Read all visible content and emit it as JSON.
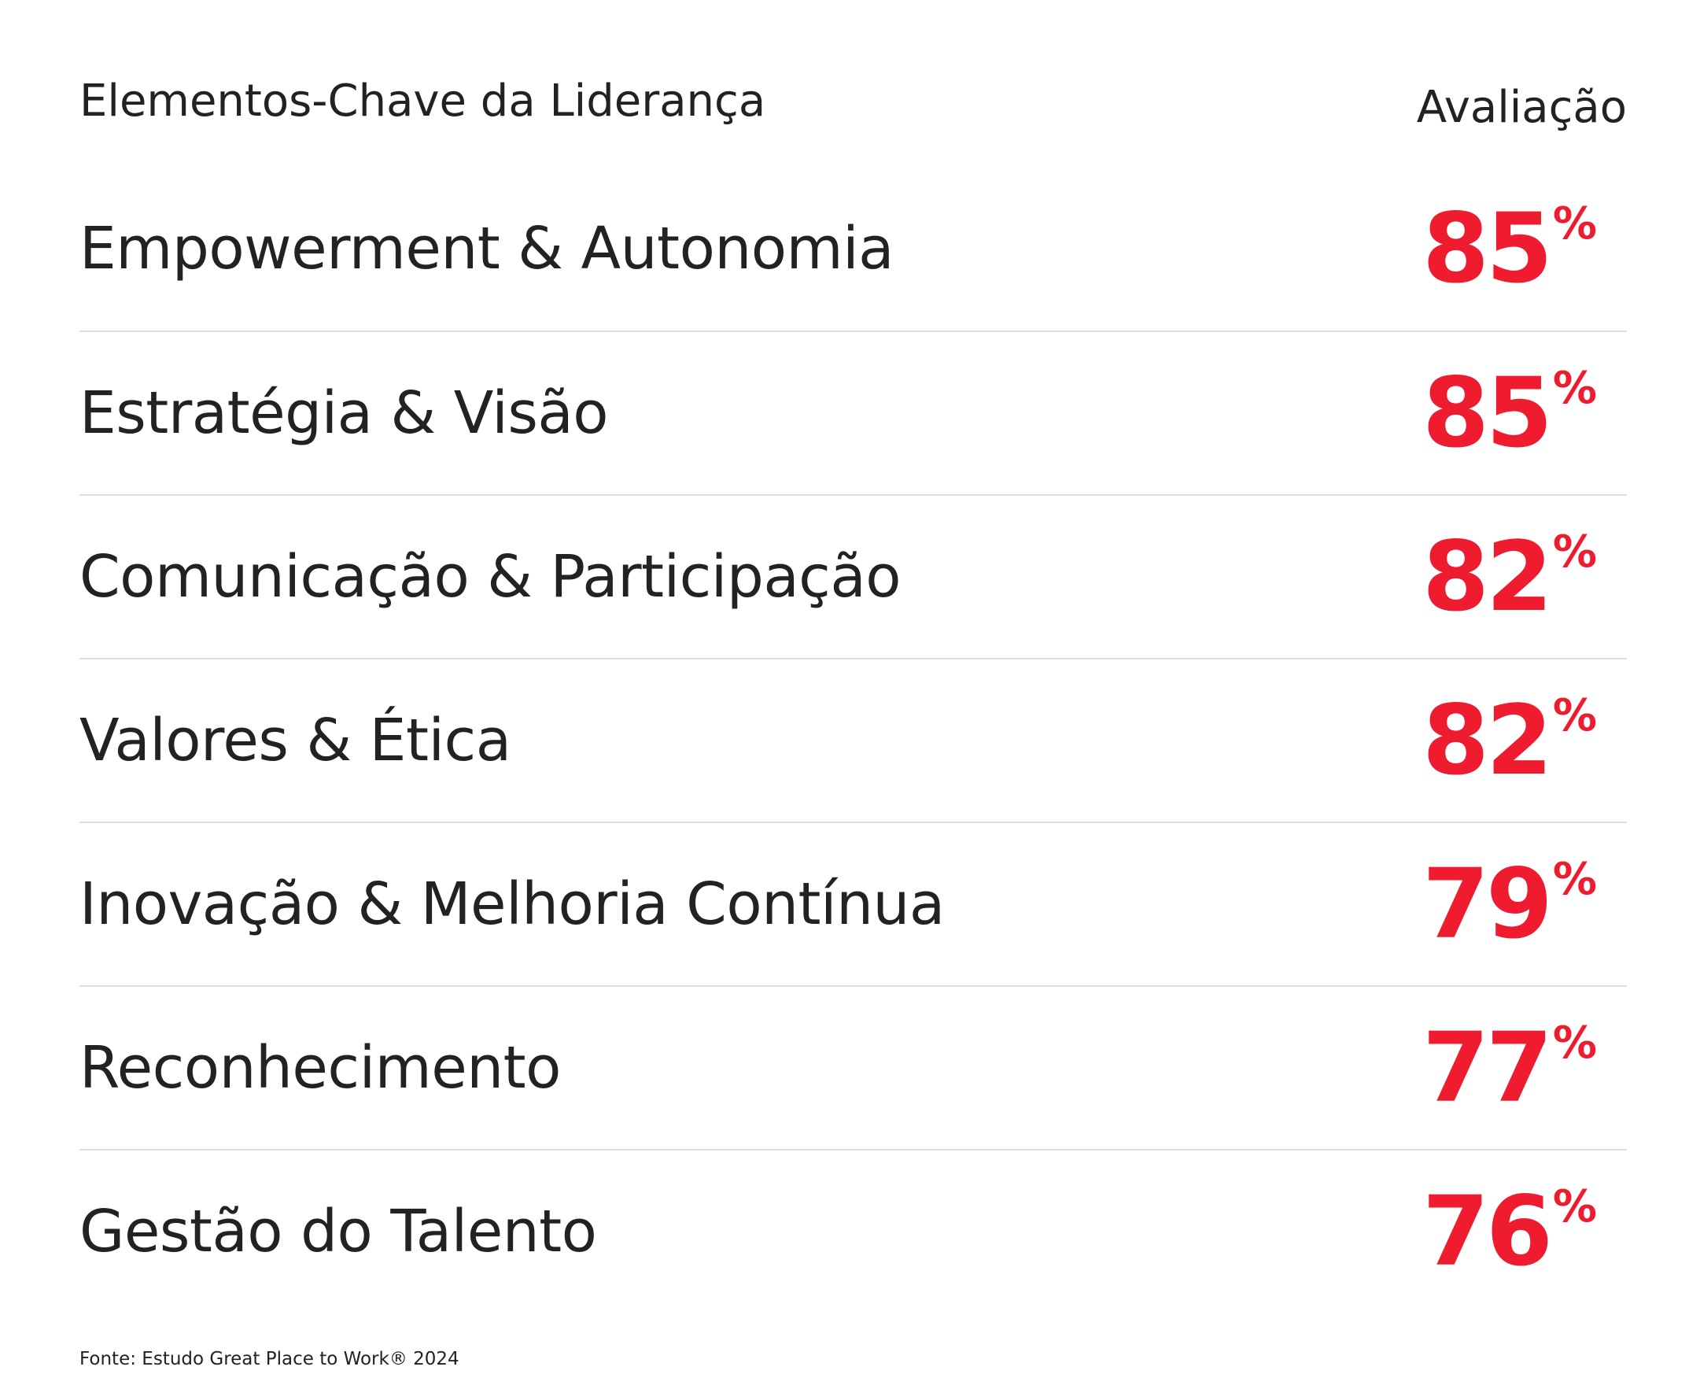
{
  "header": {
    "title": "Elementos-Chave da Liderança",
    "rating": "Avaliação"
  },
  "rows": [
    {
      "label": "Empowerment & Autonomia",
      "value": 85,
      "unit": "%"
    },
    {
      "label": "Estratégia & Visão",
      "value": 85,
      "unit": "%"
    },
    {
      "label": "Comunicação & Participação",
      "value": 82,
      "unit": "%"
    },
    {
      "label": "Valores & Ética",
      "value": 82,
      "unit": "%"
    },
    {
      "label": "Inovação & Melhoria Contínua",
      "value": 79,
      "unit": "%"
    },
    {
      "label": "Reconhecimento",
      "value": 77,
      "unit": "%"
    },
    {
      "label": "Gestão do Talento",
      "value": 76,
      "unit": "%"
    }
  ],
  "footer": {
    "source": "Fonte: Estudo Great Place to Work® 2024"
  }
}
